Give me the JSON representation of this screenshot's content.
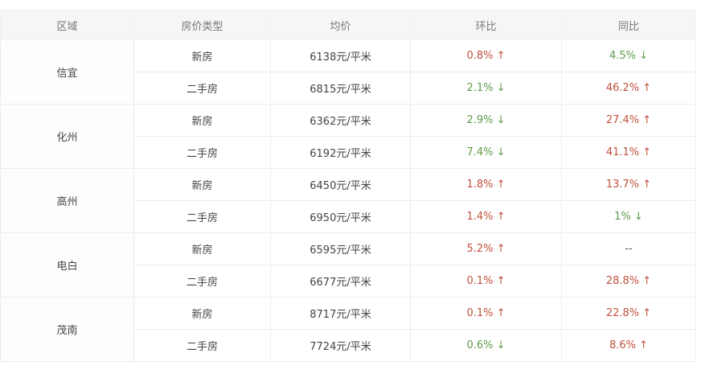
{
  "headers": [
    "区域",
    "房价类型",
    "均价",
    "环比",
    "同比"
  ],
  "colors": {
    "up": "#c0503c",
    "down": "#5d9a4a"
  },
  "regions": [
    {
      "name": "信宜",
      "rows": [
        {
          "type": "新房",
          "price": "6138元/平米",
          "mom": "0.8% ↑",
          "mom_dir": "up",
          "yoy": "4.5% ↓",
          "yoy_dir": "down"
        },
        {
          "type": "二手房",
          "price": "6815元/平米",
          "mom": "2.1% ↓",
          "mom_dir": "down",
          "yoy": "46.2% ↑",
          "yoy_dir": "up"
        }
      ]
    },
    {
      "name": "化州",
      "rows": [
        {
          "type": "新房",
          "price": "6362元/平米",
          "mom": "2.9% ↓",
          "mom_dir": "down",
          "yoy": "27.4% ↑",
          "yoy_dir": "up"
        },
        {
          "type": "二手房",
          "price": "6192元/平米",
          "mom": "7.4% ↓",
          "mom_dir": "down",
          "yoy": "41.1% ↑",
          "yoy_dir": "up"
        }
      ]
    },
    {
      "name": "高州",
      "rows": [
        {
          "type": "新房",
          "price": "6450元/平米",
          "mom": "1.8% ↑",
          "mom_dir": "up",
          "yoy": "13.7% ↑",
          "yoy_dir": "up"
        },
        {
          "type": "二手房",
          "price": "6950元/平米",
          "mom": "1.4% ↑",
          "mom_dir": "up",
          "yoy": "1% ↓",
          "yoy_dir": "down"
        }
      ]
    },
    {
      "name": "电白",
      "rows": [
        {
          "type": "新房",
          "price": "6595元/平米",
          "mom": "5.2% ↑",
          "mom_dir": "up",
          "yoy": "--",
          "yoy_dir": "none"
        },
        {
          "type": "二手房",
          "price": "6677元/平米",
          "mom": "0.1% ↑",
          "mom_dir": "up",
          "yoy": "28.8% ↑",
          "yoy_dir": "up"
        }
      ]
    },
    {
      "name": "茂南",
      "rows": [
        {
          "type": "新房",
          "price": "8717元/平米",
          "mom": "0.1% ↑",
          "mom_dir": "up",
          "yoy": "22.8% ↑",
          "yoy_dir": "up"
        },
        {
          "type": "二手房",
          "price": "7724元/平米",
          "mom": "0.6% ↓",
          "mom_dir": "down",
          "yoy": "8.6% ↑",
          "yoy_dir": "up"
        }
      ]
    }
  ]
}
